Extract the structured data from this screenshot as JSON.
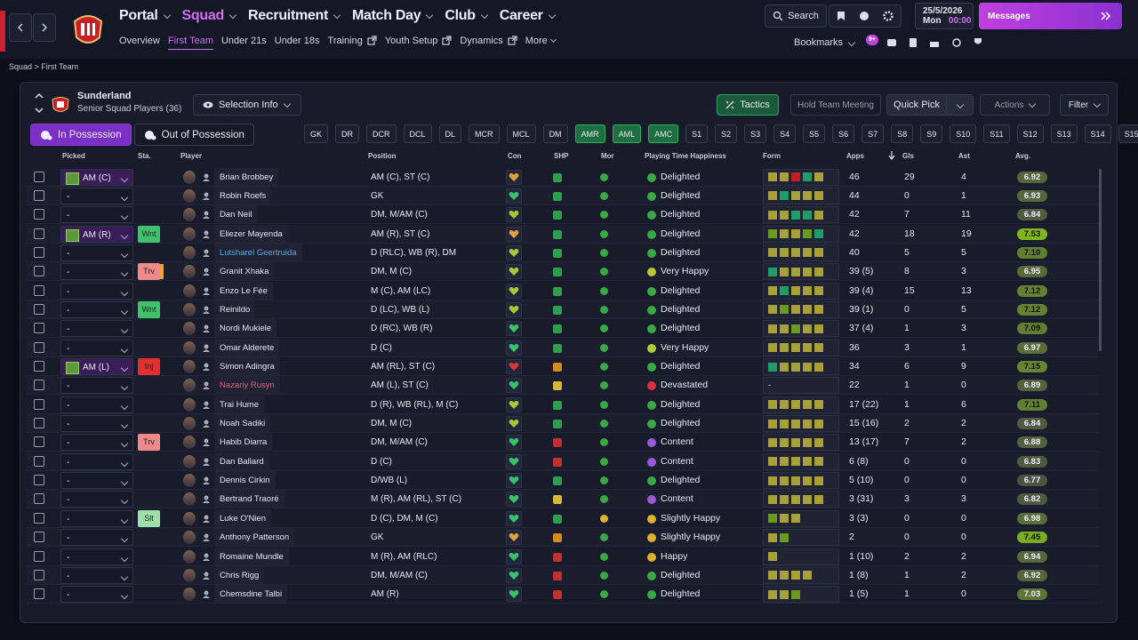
{
  "nav": {
    "menu": [
      "Portal",
      "Squad",
      "Recruitment",
      "Match Day",
      "Club",
      "Career"
    ],
    "menu_active": 1,
    "submenu": [
      {
        "label": "Overview"
      },
      {
        "label": "First Team"
      },
      {
        "label": "Under 21s"
      },
      {
        "label": "Under 18s"
      },
      {
        "label": "Training",
        "external": true
      },
      {
        "label": "Youth Setup",
        "external": true
      },
      {
        "label": "Dynamics",
        "external": true
      },
      {
        "label": "More",
        "dropdown": true
      }
    ],
    "submenu_active": 1,
    "search": "Search",
    "date": "25/5/2026",
    "day": "Mon",
    "time": "00:00",
    "messages": "Messages",
    "bookmarks": "Bookmarks",
    "badge": "9+"
  },
  "breadcrumb": [
    "Squad",
    "First Team"
  ],
  "header": {
    "club": "Sunderland",
    "subtitle": "Senior Squad Players (36)",
    "selection_info": "Selection Info",
    "tactics": "Tactics",
    "hold_meeting": "Hold Team Meeting",
    "quick_pick": "Quick Pick",
    "actions": "Actions",
    "filter": "Filter"
  },
  "tabs": [
    "In Possession",
    "Out of Possession"
  ],
  "tab_active": 0,
  "positions": [
    {
      "label": "GK"
    },
    {
      "label": "DR"
    },
    {
      "label": "DCR"
    },
    {
      "label": "DCL"
    },
    {
      "label": "DL"
    },
    {
      "label": "MCR"
    },
    {
      "label": "MCL"
    },
    {
      "label": "DM"
    },
    {
      "label": "AMR",
      "active": true
    },
    {
      "label": "AML",
      "active": true
    },
    {
      "label": "AMC",
      "active": true
    },
    {
      "label": "S1"
    },
    {
      "label": "S2"
    },
    {
      "label": "S3"
    },
    {
      "label": "S4"
    },
    {
      "label": "S5"
    },
    {
      "label": "S6"
    },
    {
      "label": "S7"
    },
    {
      "label": "S8"
    },
    {
      "label": "S9"
    },
    {
      "label": "S10"
    },
    {
      "label": "S11"
    },
    {
      "label": "S12"
    },
    {
      "label": "S13"
    },
    {
      "label": "S14"
    },
    {
      "label": "S15"
    }
  ],
  "table": {
    "columns": [
      "Picked",
      "Sta.",
      "Player",
      "Position",
      "Con",
      "SHP",
      "Mor",
      "Playing Time Happiness",
      "Form",
      "Apps",
      "Gls",
      "Ast",
      "Avg."
    ],
    "rows": [
      {
        "picked": "AM (C)",
        "kit": true,
        "picked_color": "#3a1d58",
        "name": "Brian Brobbey",
        "position": "AM (C), ST (C)",
        "con": "#e0a040",
        "shp": "#2e9e4f",
        "mor": "#3aa845",
        "happiness": "Delighted",
        "happiness_color": "#3aa845",
        "form": [
          "#a8a13a",
          "#a8a13a",
          "#c0201e",
          "#1f9c6a",
          "#a8a13a"
        ],
        "apps": "46",
        "gls": "29",
        "ast": "4",
        "avg": "6.92"
      },
      {
        "picked": "-",
        "picked_color": "#161a28",
        "name": "Robin Roefs",
        "position": "GK",
        "con": "#39c26a",
        "shp": "#2e9e4f",
        "mor": "#3aa845",
        "happiness": "Delighted",
        "happiness_color": "#3aa845",
        "form": [
          "#a8a13a",
          "#1f9c6a",
          "#a8a13a",
          "#a8a13a",
          "#a8a13a"
        ],
        "apps": "44",
        "gls": "0",
        "ast": "1",
        "avg": "6.93"
      },
      {
        "picked": "-",
        "picked_color": "#161a28",
        "name": "Dan Neil",
        "position": "DM, M/AM (C)",
        "con": "#a8c83a",
        "shp": "#2e9e4f",
        "mor": "#3aa845",
        "happiness": "Delighted",
        "happiness_color": "#3aa845",
        "form": [
          "#a8a13a",
          "#a8a13a",
          "#1f9c6a",
          "#1f9c6a",
          "#a8a13a"
        ],
        "apps": "42",
        "gls": "7",
        "ast": "11",
        "avg": "6.84"
      },
      {
        "picked": "AM (R)",
        "kit": true,
        "picked_color": "#3a1d58",
        "status": {
          "label": "Wnt",
          "color": "#3ec36a"
        },
        "name": "Eliezer Mayenda",
        "position": "AM (R), ST (C)",
        "con": "#e0a040",
        "shp": "#2e9e4f",
        "mor": "#3aa845",
        "happiness": "Delighted",
        "happiness_color": "#3aa845",
        "form": [
          "#6a9a1f",
          "#a8a13a",
          "#a8a13a",
          "#6a9a1f",
          "#1f9c6a"
        ],
        "apps": "42",
        "gls": "18",
        "ast": "19",
        "avg": "7.53"
      },
      {
        "picked": "-",
        "picked_color": "#161a28",
        "name": "Lutsharel Geertruida",
        "name_color": "#5aa8e6",
        "position": "D (RLC), WB (R), DM",
        "con": "#a8c83a",
        "shp": "#2e9e4f",
        "mor": "#3aa845",
        "happiness": "Delighted",
        "happiness_color": "#3aa845",
        "form": [
          "#a8a13a",
          "#a8a13a",
          "#a8a13a",
          "#a8a13a",
          "#a8a13a"
        ],
        "apps": "40",
        "gls": "5",
        "ast": "5",
        "avg": "7.10"
      },
      {
        "picked": "-",
        "picked_color": "#161a28",
        "status": {
          "label": "Trv",
          "color": "#f08a8a",
          "bar": "#f0a030"
        },
        "name": "Granit Xhaka",
        "position": "DM, M (C)",
        "con": "#a8c83a",
        "shp": "#2e9e4f",
        "mor": "#3aa845",
        "happiness": "Very Happy",
        "happiness_color": "#b8c83a",
        "form": [
          "#1f9c6a",
          "#a8a13a",
          "#a8a13a",
          "#a8a13a",
          "#a8a13a"
        ],
        "apps": "39 (5)",
        "gls": "8",
        "ast": "3",
        "avg": "6.95"
      },
      {
        "picked": "-",
        "picked_color": "#161a28",
        "name": "Enzo Le Fée",
        "position": "M (C), AM (LC)",
        "con": "#a8c83a",
        "shp": "#2e9e4f",
        "mor": "#3aa845",
        "happiness": "Delighted",
        "happiness_color": "#3aa845",
        "form": [
          "#a8a13a",
          "#1f9c6a",
          "#a8a13a",
          "#a8a13a",
          "#a8a13a"
        ],
        "apps": "39 (4)",
        "gls": "15",
        "ast": "13",
        "avg": "7.12"
      },
      {
        "picked": "-",
        "picked_color": "#161a28",
        "status": {
          "label": "Wnt",
          "color": "#3ec36a"
        },
        "name": "Reinildo",
        "position": "D (LC), WB (L)",
        "con": "#a8c83a",
        "shp": "#2e9e4f",
        "mor": "#3aa845",
        "happiness": "Delighted",
        "happiness_color": "#3aa845",
        "form": [
          "#a8a13a",
          "#6a9a1f",
          "#a8a13a",
          "#a8a13a",
          "#a8a13a"
        ],
        "apps": "39 (1)",
        "gls": "0",
        "ast": "5",
        "avg": "7.12"
      },
      {
        "picked": "-",
        "picked_color": "#161a28",
        "name": "Nordi Mukiele",
        "position": "D (RC), WB (R)",
        "con": "#39c26a",
        "shp": "#2e9e4f",
        "mor": "#3aa845",
        "happiness": "Delighted",
        "happiness_color": "#3aa845",
        "form": [
          "#a8a13a",
          "#a8a13a",
          "#6a9a1f",
          "#a8a13a",
          "#a8a13a"
        ],
        "apps": "37 (4)",
        "gls": "1",
        "ast": "3",
        "avg": "7.09"
      },
      {
        "picked": "-",
        "picked_color": "#161a28",
        "name": "Omar Alderete",
        "position": "D (C)",
        "con": "#39c26a",
        "shp": "#2e9e4f",
        "mor": "#3aa845",
        "happiness": "Very Happy",
        "happiness_color": "#b8c83a",
        "form": [
          "#a8a13a",
          "#a8a13a",
          "#a8a13a",
          "#a8a13a",
          "#a8a13a"
        ],
        "apps": "36",
        "gls": "3",
        "ast": "1",
        "avg": "6.97"
      },
      {
        "picked": "AM (L)",
        "kit": true,
        "picked_color": "#3a1d58",
        "status": {
          "label": "Inj",
          "color": "#e03030"
        },
        "name": "Simon Adingra",
        "position": "AM (RL), ST (C)",
        "con": "#d8323a",
        "shp": "#d98a1c",
        "mor": "#3aa845",
        "happiness": "Delighted",
        "happiness_color": "#3aa845",
        "form": [
          "#1f9c6a",
          "#a8a13a",
          "#a8a13a",
          "#a8a13a",
          "#a8a13a"
        ],
        "apps": "34",
        "gls": "6",
        "ast": "9",
        "avg": "7.15"
      },
      {
        "picked": "-",
        "picked_color": "#161a28",
        "name": "Nazariy Rusyn",
        "name_color": "#e0607a",
        "position": "AM (L), ST (C)",
        "con": "#39c26a",
        "shp": "#d4b83a",
        "mor": "#3aa845",
        "happiness": "Devastated",
        "happiness_color": "#d8323a",
        "form": "-",
        "apps": "22",
        "gls": "1",
        "ast": "0",
        "avg": "6.89"
      },
      {
        "picked": "-",
        "picked_color": "#161a28",
        "name": "Trai Hume",
        "position": "D (R), WB (RL), M (C)",
        "con": "#a8c83a",
        "shp": "#2e9e4f",
        "mor": "#3aa845",
        "happiness": "Delighted",
        "happiness_color": "#3aa845",
        "form": [
          "#a8a13a",
          "#a8a13a",
          "#a8a13a",
          "#a8a13a",
          "#a8a13a"
        ],
        "apps": "17 (22)",
        "gls": "1",
        "ast": "6",
        "avg": "7.11"
      },
      {
        "picked": "-",
        "picked_color": "#161a28",
        "name": "Noah Sadiki",
        "position": "DM, M (C)",
        "con": "#a8c83a",
        "shp": "#2e9e4f",
        "mor": "#3aa845",
        "happiness": "Delighted",
        "happiness_color": "#3aa845",
        "form": [
          "#a8a13a",
          "#a8a13a",
          "#a8a13a",
          "#a8a13a",
          "#a8a13a"
        ],
        "apps": "15 (16)",
        "gls": "2",
        "ast": "2",
        "avg": "6.84"
      },
      {
        "picked": "-",
        "picked_color": "#161a28",
        "status": {
          "label": "Trv",
          "color": "#f08a8a"
        },
        "name": "Habib Diarra",
        "position": "DM, M/AM (C)",
        "con": "#39c26a",
        "shp": "#c03030",
        "mor": "#3aa845",
        "happiness": "Content",
        "happiness_color": "#9a5ad8",
        "form": [
          "#a8a13a",
          "#a8a13a",
          "#a8a13a",
          "#a8a13a",
          "#a8a13a"
        ],
        "apps": "13 (17)",
        "gls": "7",
        "ast": "2",
        "avg": "6.88"
      },
      {
        "picked": "-",
        "picked_color": "#161a28",
        "name": "Dan Ballard",
        "position": "D (C)",
        "con": "#39c26a",
        "shp": "#c03030",
        "mor": "#3aa845",
        "happiness": "Content",
        "happiness_color": "#9a5ad8",
        "form": [
          "#a8a13a",
          "#a8a13a",
          "#a8a13a",
          "#a8a13a",
          "#a8a13a"
        ],
        "apps": "6 (8)",
        "gls": "0",
        "ast": "0",
        "avg": "6.83"
      },
      {
        "picked": "-",
        "picked_color": "#161a28",
        "name": "Dennis Cirkin",
        "position": "D/WB (L)",
        "con": "#39c26a",
        "shp": "#2e9e4f",
        "mor": "#3aa845",
        "happiness": "Delighted",
        "happiness_color": "#3aa845",
        "form": [
          "#a8a13a",
          "#a8a13a",
          "#a8a13a",
          "#a8a13a",
          "#a8a13a"
        ],
        "apps": "5 (10)",
        "gls": "0",
        "ast": "0",
        "avg": "6.77"
      },
      {
        "picked": "-",
        "picked_color": "#161a28",
        "name": "Bertrand Traoré",
        "position": "M (R), AM (RL), ST (C)",
        "con": "#39c26a",
        "shp": "#d4b83a",
        "mor": "#3aa845",
        "happiness": "Content",
        "happiness_color": "#9a5ad8",
        "form": [
          "#a8a13a",
          "#a8a13a",
          "#a8a13a",
          "#a8a13a",
          "#a8a13a"
        ],
        "apps": "3 (31)",
        "gls": "3",
        "ast": "3",
        "avg": "6.82"
      },
      {
        "picked": "-",
        "picked_color": "#161a28",
        "status": {
          "label": "Slt",
          "color": "#9ee0a8"
        },
        "name": "Luke O'Nien",
        "position": "D (C), DM, M (C)",
        "con": "#39c26a",
        "shp": "#2e9e4f",
        "mor": "#e0b030",
        "happiness": "Slightly Happy",
        "happiness_color": "#e0b030",
        "form": [
          "#6a9a1f",
          "#a8a13a",
          "#a8a13a"
        ],
        "apps": "3 (3)",
        "gls": "0",
        "ast": "0",
        "avg": "6.98"
      },
      {
        "picked": "-",
        "picked_color": "#161a28",
        "name": "Anthony Patterson",
        "position": "GK",
        "con": "#e0a040",
        "shp": "#d98a1c",
        "mor": "#3aa845",
        "happiness": "Slightly Happy",
        "happiness_color": "#e0b030",
        "form": [
          "#a8a13a",
          "#6a9a1f"
        ],
        "apps": "2",
        "gls": "0",
        "ast": "0",
        "avg": "7.45"
      },
      {
        "picked": "-",
        "picked_color": "#161a28",
        "name": "Romaine Mundle",
        "position": "M (R), AM (RLC)",
        "con": "#39c26a",
        "shp": "#c03030",
        "mor": "#3aa845",
        "happiness": "Happy",
        "happiness_color": "#e0b030",
        "form": [
          "#a8a13a"
        ],
        "apps": "1 (10)",
        "gls": "2",
        "ast": "2",
        "avg": "6.94"
      },
      {
        "picked": "-",
        "picked_color": "#161a28",
        "name": "Chris Rigg",
        "position": "DM, M/AM (C)",
        "con": "#39c26a",
        "shp": "#c03030",
        "mor": "#3aa845",
        "happiness": "Delighted",
        "happiness_color": "#3aa845",
        "form": [
          "#a8a13a",
          "#a8a13a",
          "#a8a13a",
          "#a8a13a"
        ],
        "apps": "1 (8)",
        "gls": "1",
        "ast": "2",
        "avg": "6.92"
      },
      {
        "picked": "-",
        "picked_color": "#161a28",
        "name": "Chemsdine Talbi",
        "position": "AM (R)",
        "con": "#39c26a",
        "shp": "#c03030",
        "mor": "#3aa845",
        "happiness": "Delighted",
        "happiness_color": "#3aa845",
        "form": [
          "#a8a13a",
          "#a8a13a",
          "#6a9a1f"
        ],
        "apps": "1 (5)",
        "gls": "1",
        "ast": "0",
        "avg": "7.03"
      }
    ]
  }
}
